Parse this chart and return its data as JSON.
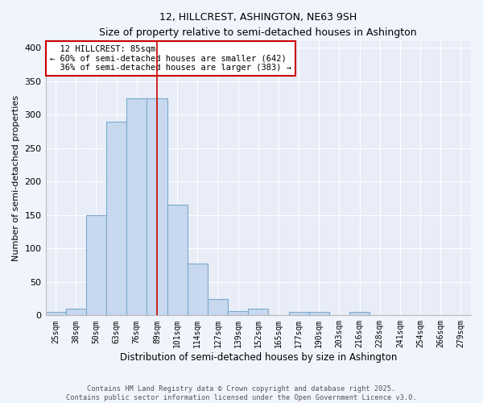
{
  "title": "12, HILLCREST, ASHINGTON, NE63 9SH",
  "subtitle": "Size of property relative to semi-detached houses in Ashington",
  "xlabel": "Distribution of semi-detached houses by size in Ashington",
  "ylabel": "Number of semi-detached properties",
  "bins": [
    "25sqm",
    "38sqm",
    "50sqm",
    "63sqm",
    "76sqm",
    "89sqm",
    "101sqm",
    "114sqm",
    "127sqm",
    "139sqm",
    "152sqm",
    "165sqm",
    "177sqm",
    "190sqm",
    "203sqm",
    "216sqm",
    "228sqm",
    "241sqm",
    "254sqm",
    "266sqm",
    "279sqm"
  ],
  "values": [
    5,
    10,
    150,
    290,
    325,
    325,
    165,
    77,
    25,
    7,
    10,
    0,
    5,
    5,
    0,
    5,
    0,
    0,
    1,
    0,
    0
  ],
  "bar_color": "#c8d8ee",
  "bar_edge_color": "#7aaad0",
  "property_bin_index": 5,
  "property_label": "12 HILLCREST: 85sqm",
  "pct_smaller": 60,
  "count_smaller": 642,
  "pct_larger": 36,
  "count_larger": 383,
  "annotation_line_color": "#cc0000",
  "ylim": [
    0,
    410
  ],
  "yticks": [
    0,
    50,
    100,
    150,
    200,
    250,
    300,
    350,
    400
  ],
  "plot_bg": "#e8edf8",
  "fig_bg": "#f0f4fc",
  "footer_line1": "Contains HM Land Registry data © Crown copyright and database right 2025.",
  "footer_line2": "Contains public sector information licensed under the Open Government Licence v3.0."
}
